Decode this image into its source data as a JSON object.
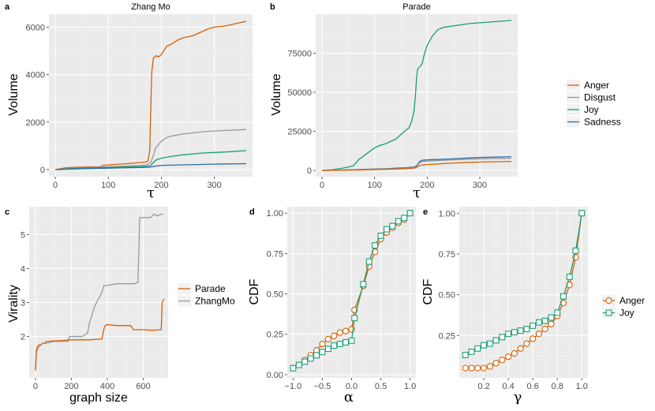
{
  "colors": {
    "Anger": "#d95f02",
    "Disgust": "#999999",
    "Joy": "#1b9e77",
    "Sadness": "#2b6ca8",
    "Parade": "#d95f02",
    "ZhangMo": "#999999"
  },
  "chart_data": [
    {
      "id": "a",
      "letter": "a",
      "title": "Zhang Mo",
      "type": "line",
      "xlabel": "τ",
      "ylabel": "Volume",
      "xlim": [
        -12,
        372
      ],
      "ylim": [
        -300,
        6550
      ],
      "xticks": [
        0,
        100,
        200,
        300
      ],
      "xtick_labels": [
        "0",
        "100",
        "200",
        "300"
      ],
      "yticks": [
        0,
        2000,
        4000,
        6000
      ],
      "ytick_labels": [
        "0",
        "2000",
        "4000",
        "6000"
      ],
      "xminor": [
        50,
        150,
        250,
        350
      ],
      "yminor": [
        1000,
        3000,
        5000
      ],
      "series": [
        {
          "name": "Anger",
          "x": [
            0,
            10,
            20,
            40,
            60,
            85,
            90,
            100,
            120,
            140,
            160,
            170,
            175,
            178,
            180,
            182,
            185,
            190,
            195,
            200,
            210,
            220,
            230,
            240,
            250,
            260,
            270,
            280,
            290,
            300,
            320,
            340,
            360
          ],
          "y": [
            0,
            40,
            80,
            100,
            110,
            120,
            180,
            200,
            230,
            260,
            300,
            320,
            360,
            800,
            2500,
            4100,
            4700,
            4800,
            4750,
            4850,
            5200,
            5300,
            5450,
            5550,
            5600,
            5650,
            5750,
            5850,
            5950,
            6000,
            6050,
            6150,
            6250
          ]
        },
        {
          "name": "Disgust",
          "x": [
            0,
            20,
            40,
            60,
            80,
            100,
            120,
            140,
            160,
            170,
            175,
            180,
            185,
            190,
            195,
            200,
            210,
            220,
            240,
            260,
            280,
            300,
            320,
            340,
            360
          ],
          "y": [
            0,
            40,
            60,
            80,
            100,
            120,
            140,
            160,
            180,
            200,
            230,
            300,
            600,
            950,
            1050,
            1200,
            1350,
            1420,
            1500,
            1550,
            1600,
            1630,
            1650,
            1670,
            1690
          ]
        },
        {
          "name": "Joy",
          "x": [
            0,
            40,
            80,
            120,
            160,
            175,
            180,
            185,
            190,
            200,
            220,
            240,
            260,
            280,
            300,
            320,
            340,
            360
          ],
          "y": [
            0,
            50,
            80,
            100,
            130,
            150,
            180,
            300,
            400,
            480,
            560,
            620,
            660,
            700,
            720,
            740,
            770,
            800
          ]
        },
        {
          "name": "Sadness",
          "x": [
            0,
            40,
            80,
            120,
            160,
            180,
            190,
            200,
            240,
            280,
            320,
            360
          ],
          "y": [
            0,
            30,
            50,
            70,
            90,
            110,
            150,
            180,
            200,
            220,
            240,
            250
          ]
        }
      ]
    },
    {
      "id": "b",
      "letter": "b",
      "title": "Parade",
      "type": "line",
      "xlabel": "τ",
      "ylabel": "Volume",
      "xlim": [
        -12,
        372
      ],
      "ylim": [
        -4000,
        100000
      ],
      "xticks": [
        0,
        100,
        200,
        300
      ],
      "xtick_labels": [
        "0",
        "100",
        "200",
        "300"
      ],
      "yticks": [
        0,
        25000,
        50000,
        75000
      ],
      "ytick_labels": [
        "0",
        "25000",
        "50000",
        "75000"
      ],
      "xminor": [
        50,
        150,
        250,
        350
      ],
      "yminor": [
        12500,
        37500,
        62500,
        87500
      ],
      "series": [
        {
          "name": "Joy",
          "x": [
            0,
            20,
            40,
            60,
            70,
            80,
            90,
            100,
            110,
            120,
            130,
            140,
            150,
            160,
            165,
            170,
            175,
            178,
            180,
            182,
            185,
            190,
            195,
            200,
            210,
            220,
            230,
            240,
            260,
            280,
            300,
            320,
            340,
            360
          ],
          "y": [
            0,
            500,
            1500,
            3000,
            7000,
            9500,
            12000,
            14500,
            16000,
            17000,
            18500,
            20000,
            23000,
            26000,
            27000,
            31000,
            38000,
            50000,
            60000,
            65000,
            66000,
            68000,
            75000,
            80000,
            86000,
            90000,
            91500,
            92000,
            93000,
            94000,
            94500,
            95000,
            95500,
            96000
          ]
        },
        {
          "name": "Sadness",
          "x": [
            0,
            40,
            80,
            120,
            160,
            175,
            180,
            185,
            190,
            200,
            220,
            240,
            260,
            280,
            300,
            330,
            360
          ],
          "y": [
            0,
            300,
            700,
            1100,
            1800,
            2200,
            3000,
            5500,
            6500,
            6800,
            7000,
            7300,
            7600,
            8000,
            8300,
            8500,
            8800
          ]
        },
        {
          "name": "Disgust",
          "x": [
            0,
            40,
            80,
            120,
            160,
            175,
            180,
            185,
            190,
            200,
            220,
            240,
            260,
            280,
            300,
            330,
            360
          ],
          "y": [
            0,
            250,
            600,
            900,
            1500,
            1900,
            2500,
            4800,
            5600,
            6000,
            6300,
            6600,
            6900,
            7200,
            7400,
            7600,
            7800
          ]
        },
        {
          "name": "Anger",
          "x": [
            0,
            40,
            80,
            120,
            160,
            175,
            180,
            185,
            190,
            200,
            220,
            240,
            260,
            280,
            300,
            330,
            360
          ],
          "y": [
            0,
            200,
            400,
            700,
            1100,
            1500,
            2000,
            3000,
            3400,
            3800,
            4200,
            4600,
            4900,
            5200,
            5400,
            5600,
            5800
          ]
        }
      ],
      "legend": {
        "position": "right",
        "entries": [
          "Anger",
          "Disgust",
          "Joy",
          "Sadness"
        ]
      }
    },
    {
      "id": "c",
      "letter": "c",
      "title": "",
      "type": "line",
      "xlabel": "graph size",
      "ylabel": "Virality",
      "xlim": [
        -35,
        738
      ],
      "ylim": [
        0.78,
        5.82
      ],
      "xticks": [
        0,
        200,
        400,
        600
      ],
      "xtick_labels": [
        "0",
        "200",
        "400",
        "600"
      ],
      "yticks": [
        2,
        3,
        4,
        5
      ],
      "ytick_labels": [
        "2",
        "3",
        "4",
        "5"
      ],
      "xminor": [
        100,
        300,
        500,
        700
      ],
      "yminor": [
        1.5,
        2.5,
        3.5,
        4.5,
        5.5
      ],
      "series": [
        {
          "name": "ZhangMo",
          "x": [
            0,
            5,
            10,
            15,
            20,
            30,
            40,
            60,
            80,
            100,
            150,
            180,
            190,
            220,
            260,
            290,
            300,
            330,
            360,
            370,
            380,
            400,
            450,
            500,
            550,
            570,
            575,
            580,
            600,
            640,
            660,
            680,
            700,
            710
          ],
          "y": [
            1.0,
            1.5,
            1.6,
            1.65,
            1.7,
            1.75,
            1.8,
            1.8,
            1.82,
            1.85,
            1.85,
            1.85,
            2.0,
            2.0,
            2.0,
            2.1,
            2.4,
            2.9,
            3.2,
            3.3,
            3.5,
            3.5,
            3.55,
            3.55,
            3.55,
            3.6,
            4.5,
            5.5,
            5.5,
            5.5,
            5.6,
            5.55,
            5.6,
            5.6
          ]
        },
        {
          "name": "Parade",
          "x": [
            0,
            5,
            10,
            20,
            30,
            40,
            50,
            60,
            100,
            150,
            200,
            250,
            300,
            350,
            370,
            380,
            385,
            390,
            400,
            450,
            500,
            530,
            545,
            550,
            560,
            600,
            650,
            700,
            705,
            715
          ],
          "y": [
            1.0,
            1.6,
            1.7,
            1.75,
            1.75,
            1.8,
            1.8,
            1.85,
            1.87,
            1.88,
            1.9,
            1.9,
            1.9,
            1.92,
            1.92,
            2.2,
            2.3,
            2.32,
            2.35,
            2.32,
            2.32,
            2.32,
            2.2,
            2.2,
            2.2,
            2.2,
            2.18,
            2.2,
            3.0,
            3.1
          ]
        }
      ],
      "legend": {
        "position": "right",
        "entries": [
          "Parade",
          "ZhangMo"
        ]
      }
    },
    {
      "id": "d",
      "letter": "d",
      "title": "",
      "type": "line",
      "xlabel": "α",
      "ylabel": "CDF",
      "xlim": [
        -1.1,
        1.1
      ],
      "ylim": [
        -0.02,
        1.04
      ],
      "xticks": [
        -1,
        -0.5,
        0,
        0.5,
        1
      ],
      "xtick_labels": [
        "−1.0",
        "−0.5",
        "0.0",
        "0.5",
        "1.0"
      ],
      "yticks": [
        0,
        0.25,
        0.5,
        0.75,
        1
      ],
      "ytick_labels": [
        "0.00",
        "0.25",
        "0.50",
        "0.75",
        "1.00"
      ],
      "xminor": [
        -0.75,
        -0.25,
        0.25,
        0.75
      ],
      "yminor": [
        0.125,
        0.375,
        0.625,
        0.875
      ],
      "series": [
        {
          "name": "Anger",
          "marker": "circle",
          "x": [
            -1.0,
            -0.9,
            -0.8,
            -0.7,
            -0.6,
            -0.5,
            -0.4,
            -0.3,
            -0.2,
            -0.1,
            0.0,
            0.05,
            0.2,
            0.3,
            0.4,
            0.5,
            0.6,
            0.7,
            0.8,
            0.9,
            1.0
          ],
          "y": [
            0.04,
            0.06,
            0.09,
            0.12,
            0.15,
            0.19,
            0.22,
            0.24,
            0.26,
            0.27,
            0.28,
            0.4,
            0.55,
            0.67,
            0.76,
            0.84,
            0.88,
            0.91,
            0.94,
            0.96,
            1.0
          ]
        },
        {
          "name": "Joy",
          "marker": "square",
          "x": [
            -1.0,
            -0.9,
            -0.8,
            -0.7,
            -0.6,
            -0.5,
            -0.4,
            -0.3,
            -0.2,
            -0.1,
            0.0,
            0.05,
            0.2,
            0.3,
            0.4,
            0.5,
            0.6,
            0.7,
            0.8,
            0.9,
            1.0
          ],
          "y": [
            0.04,
            0.06,
            0.08,
            0.1,
            0.12,
            0.14,
            0.16,
            0.18,
            0.19,
            0.2,
            0.21,
            0.35,
            0.56,
            0.7,
            0.8,
            0.86,
            0.9,
            0.92,
            0.95,
            0.97,
            1.0
          ]
        }
      ]
    },
    {
      "id": "e",
      "letter": "e",
      "title": "",
      "type": "line",
      "xlabel": "γ",
      "ylabel": "CDF",
      "xlim": [
        0,
        1.05
      ],
      "ylim": [
        -0.01,
        1.04
      ],
      "xticks": [
        0.2,
        0.4,
        0.6,
        0.8,
        1.0
      ],
      "xtick_labels": [
        "0.2",
        "0.4",
        "0.6",
        "0.8",
        "1.0"
      ],
      "yticks": [
        0.25,
        0.5,
        0.75,
        1
      ],
      "ytick_labels": [
        "0.25",
        "0.50",
        "0.75",
        "1.00"
      ],
      "xminor": [
        0.1,
        0.3,
        0.5,
        0.7,
        0.9
      ],
      "yminor": [
        0.125,
        0.375,
        0.625,
        0.875
      ],
      "series": [
        {
          "name": "Anger",
          "marker": "circle",
          "x": [
            0.05,
            0.1,
            0.15,
            0.2,
            0.25,
            0.3,
            0.35,
            0.4,
            0.45,
            0.5,
            0.55,
            0.6,
            0.65,
            0.7,
            0.75,
            0.8,
            0.85,
            0.9,
            0.95,
            1.0
          ],
          "y": [
            0.05,
            0.05,
            0.05,
            0.05,
            0.06,
            0.08,
            0.1,
            0.12,
            0.14,
            0.17,
            0.2,
            0.23,
            0.26,
            0.29,
            0.32,
            0.37,
            0.45,
            0.56,
            0.73,
            1.0
          ]
        },
        {
          "name": "Joy",
          "marker": "square",
          "x": [
            0.05,
            0.1,
            0.15,
            0.2,
            0.25,
            0.3,
            0.35,
            0.4,
            0.45,
            0.5,
            0.55,
            0.6,
            0.65,
            0.7,
            0.75,
            0.8,
            0.85,
            0.9,
            0.95,
            1.0
          ],
          "y": [
            0.13,
            0.15,
            0.17,
            0.19,
            0.2,
            0.22,
            0.24,
            0.26,
            0.27,
            0.28,
            0.29,
            0.31,
            0.33,
            0.34,
            0.36,
            0.39,
            0.49,
            0.61,
            0.77,
            1.0
          ]
        }
      ],
      "legend": {
        "position": "right",
        "entries": [
          "Anger",
          "Joy"
        ]
      }
    }
  ]
}
